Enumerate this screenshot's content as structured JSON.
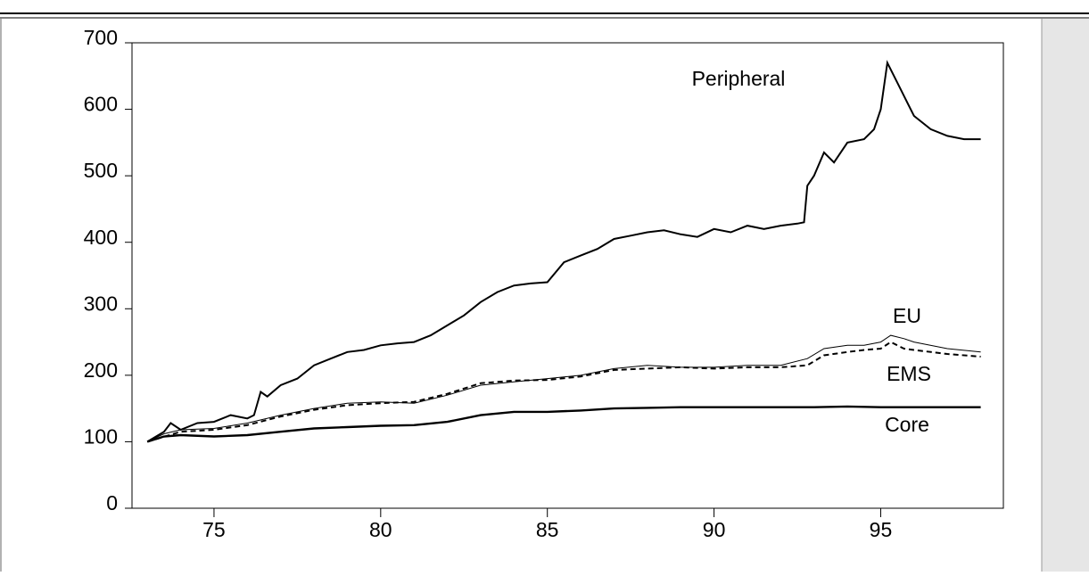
{
  "chart_data": {
    "type": "line",
    "xlim": [
      72.54,
      98.68
    ],
    "xticks": [
      75,
      80,
      85,
      90,
      95
    ],
    "ylim": [
      0,
      700
    ],
    "yticks": [
      0,
      100,
      200,
      300,
      400,
      500,
      600,
      700
    ],
    "series": [
      {
        "name": "Peripheral",
        "color": "#000000",
        "dashed": false,
        "x": [
          73,
          73.5,
          73.7,
          74,
          74.5,
          75,
          75.5,
          76,
          76.2,
          76.4,
          76.6,
          77,
          77.5,
          78,
          78.5,
          79,
          79.5,
          80,
          80.5,
          81,
          81.5,
          82,
          82.5,
          83,
          83.5,
          84,
          84.5,
          85,
          85.5,
          86,
          86.5,
          87,
          87.5,
          88,
          88.5,
          89,
          89.5,
          90,
          90.5,
          91,
          91.5,
          92,
          92.5,
          92.7,
          92.8,
          93,
          93.3,
          93.6,
          94,
          94.5,
          94.8,
          95,
          95.2,
          95.5,
          95.7,
          96,
          96.5,
          97,
          97.5,
          98
        ],
        "values": [
          100,
          115,
          128,
          118,
          128,
          130,
          140,
          135,
          140,
          175,
          168,
          185,
          195,
          215,
          225,
          235,
          238,
          245,
          248,
          250,
          260,
          275,
          290,
          310,
          325,
          335,
          338,
          340,
          370,
          380,
          390,
          405,
          410,
          415,
          418,
          412,
          408,
          420,
          415,
          425,
          420,
          425,
          428,
          430,
          485,
          500,
          535,
          520,
          550,
          555,
          570,
          600,
          670,
          640,
          620,
          590,
          570,
          560,
          555,
          555
        ]
      },
      {
        "name": "EU",
        "color": "#000000",
        "dashed": false,
        "x": [
          73,
          73.5,
          74,
          75,
          76,
          77,
          78,
          79,
          80,
          81,
          82,
          83,
          84,
          85,
          86,
          87,
          88,
          89,
          90,
          91,
          92,
          92.8,
          93.3,
          94,
          94.5,
          95,
          95.3,
          95.7,
          96,
          97,
          98
        ],
        "values": [
          100,
          112,
          118,
          120,
          128,
          140,
          150,
          158,
          160,
          158,
          170,
          185,
          190,
          195,
          200,
          210,
          215,
          212,
          212,
          215,
          215,
          225,
          240,
          245,
          245,
          250,
          260,
          255,
          250,
          240,
          235
        ]
      },
      {
        "name": "EMS",
        "color": "#000000",
        "dashed": true,
        "x": [
          73,
          74,
          75,
          76,
          77,
          78,
          79,
          80,
          81,
          82,
          83,
          84,
          85,
          86,
          87,
          88,
          89,
          90,
          91,
          92,
          92.8,
          93.3,
          94,
          94.5,
          95,
          95.3,
          95.7,
          96,
          97,
          98
        ],
        "values": [
          100,
          115,
          118,
          125,
          138,
          148,
          155,
          158,
          160,
          172,
          188,
          192,
          193,
          198,
          208,
          210,
          212,
          210,
          212,
          212,
          215,
          230,
          235,
          238,
          240,
          250,
          240,
          238,
          232,
          228
        ]
      },
      {
        "name": "Core",
        "color": "#000000",
        "dashed": false,
        "x": [
          73,
          73.5,
          74,
          75,
          76,
          77,
          78,
          79,
          80,
          81,
          82,
          83,
          84,
          85,
          86,
          87,
          88,
          89,
          90,
          91,
          92,
          93,
          94,
          95,
          96,
          97,
          98
        ],
        "values": [
          100,
          108,
          110,
          108,
          110,
          115,
          120,
          122,
          124,
          125,
          130,
          140,
          145,
          145,
          147,
          150,
          151,
          152,
          152,
          152,
          152,
          152,
          153,
          152,
          152,
          152,
          152
        ]
      }
    ]
  }
}
